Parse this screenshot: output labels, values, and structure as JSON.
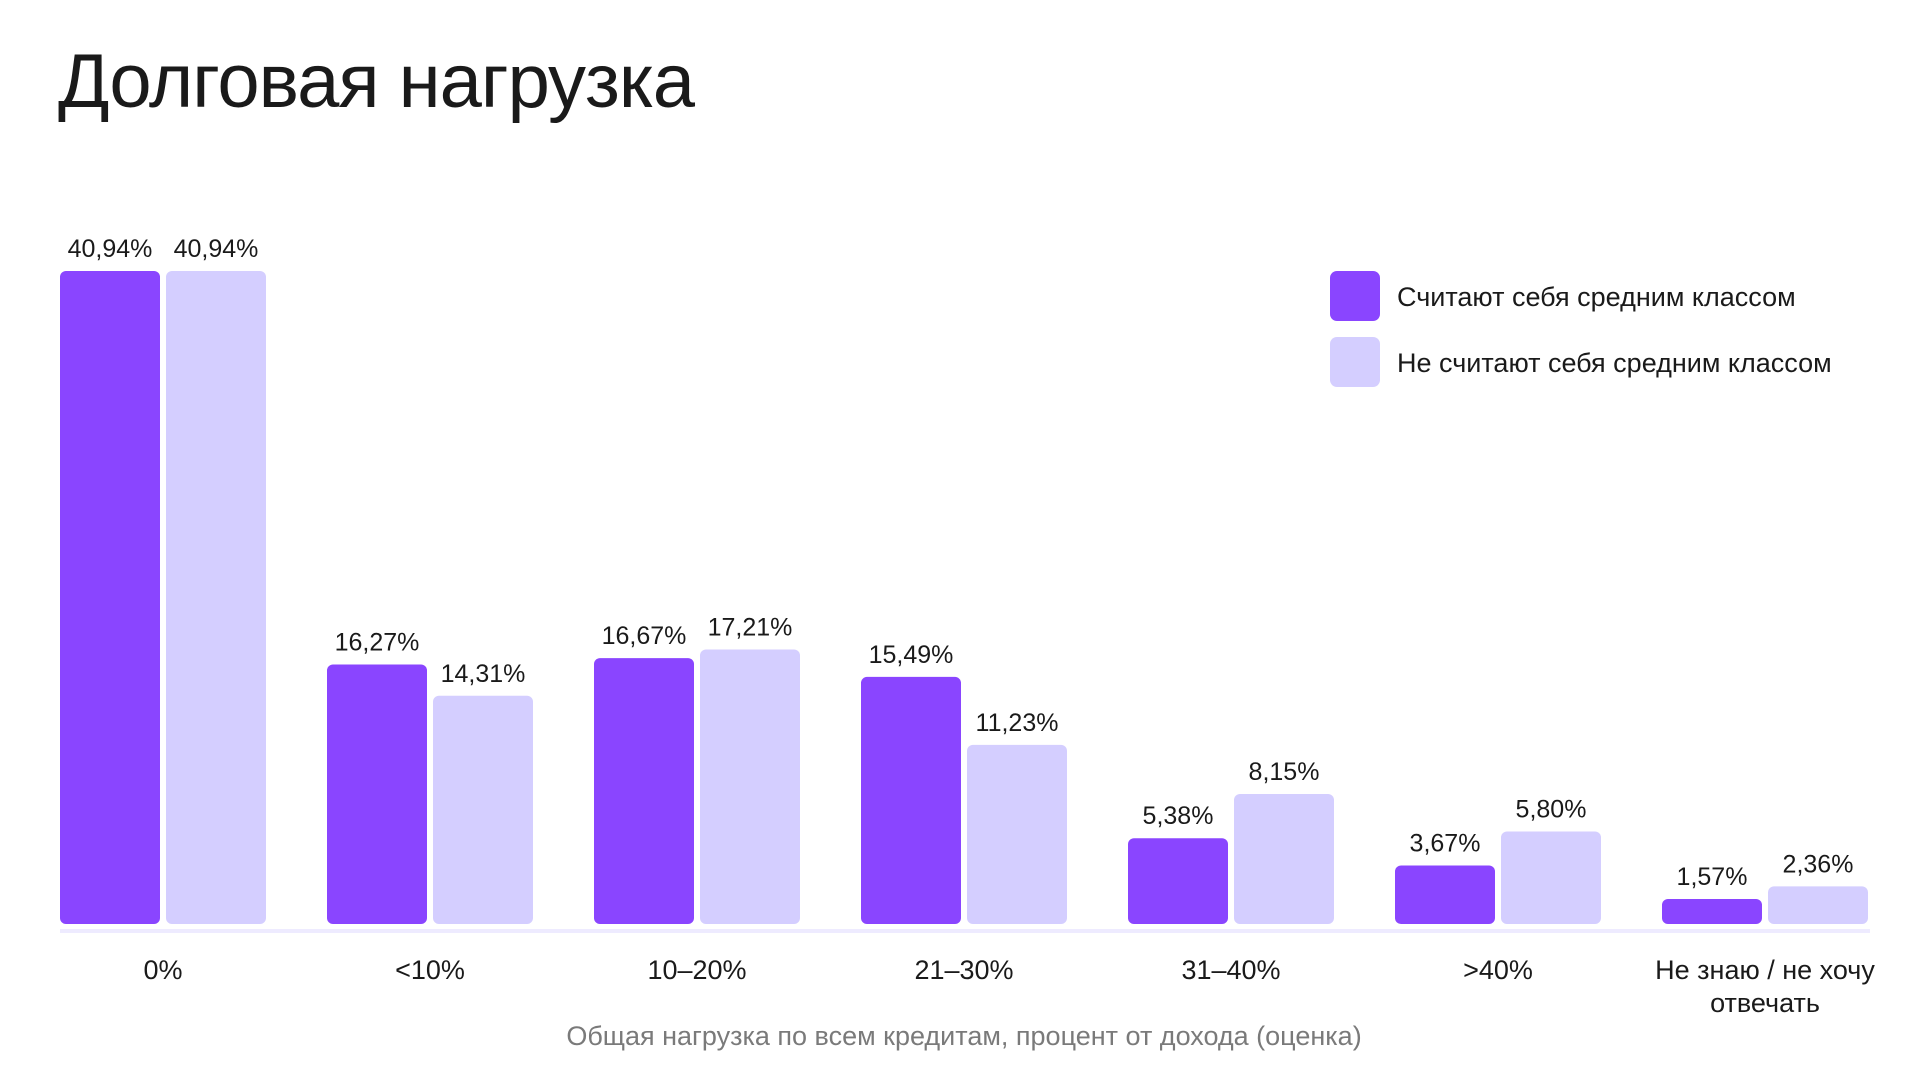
{
  "chart_data": {
    "type": "bar",
    "title": "Долговая нагрузка",
    "xlabel": "Общая нагрузка по всем кредитам, процент от дохода (оценка)",
    "ylabel": "",
    "categories": [
      "0%",
      "<10%",
      "10–20%",
      "21–30%",
      "31–40%",
      ">40%",
      "Не знаю / не хочу отвечать"
    ],
    "series": [
      {
        "name": "Считают себя средним классом",
        "color": "#8A45FF",
        "values": [
          40.94,
          16.27,
          16.67,
          15.49,
          5.38,
          3.67,
          1.57
        ],
        "labels": [
          "40,94%",
          "16,27%",
          "16,67%",
          "15,49%",
          "5,38%",
          "3,67%",
          "1,57%"
        ]
      },
      {
        "name": "Не считают себя средним классом",
        "color": "#D4CEFF",
        "values": [
          40.94,
          14.31,
          17.21,
          11.23,
          8.15,
          5.8,
          2.36
        ],
        "labels": [
          "40,94%",
          "14,31%",
          "17,21%",
          "11,23%",
          "8,15%",
          "5,80%",
          "2,36%"
        ]
      }
    ],
    "ylim": [
      0,
      40.94
    ],
    "grid": false,
    "legend_position": "top-right",
    "baseline_color": "#EEEBFF"
  }
}
